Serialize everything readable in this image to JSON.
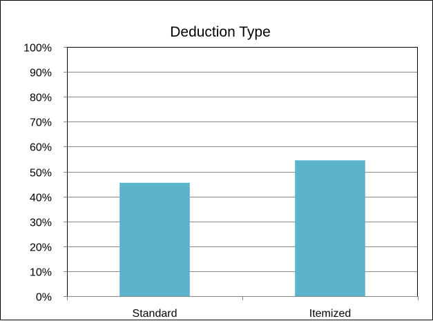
{
  "chart_data": {
    "type": "bar",
    "title": "Deduction Type",
    "xlabel": "",
    "ylabel": "",
    "categories": [
      "Standard",
      "Itemized"
    ],
    "values": [
      45.5,
      54.5
    ],
    "ylim": [
      0,
      100
    ],
    "yticks": [
      0,
      10,
      20,
      30,
      40,
      50,
      60,
      70,
      80,
      90,
      100
    ],
    "ytick_labels": [
      "0%",
      "10%",
      "20%",
      "30%",
      "40%",
      "50%",
      "60%",
      "70%",
      "80%",
      "90%",
      "100%"
    ],
    "grid": true,
    "legend": "none",
    "bar_color": "#5cb3cc",
    "grid_color": "#868686",
    "axis_color": "#868686"
  }
}
